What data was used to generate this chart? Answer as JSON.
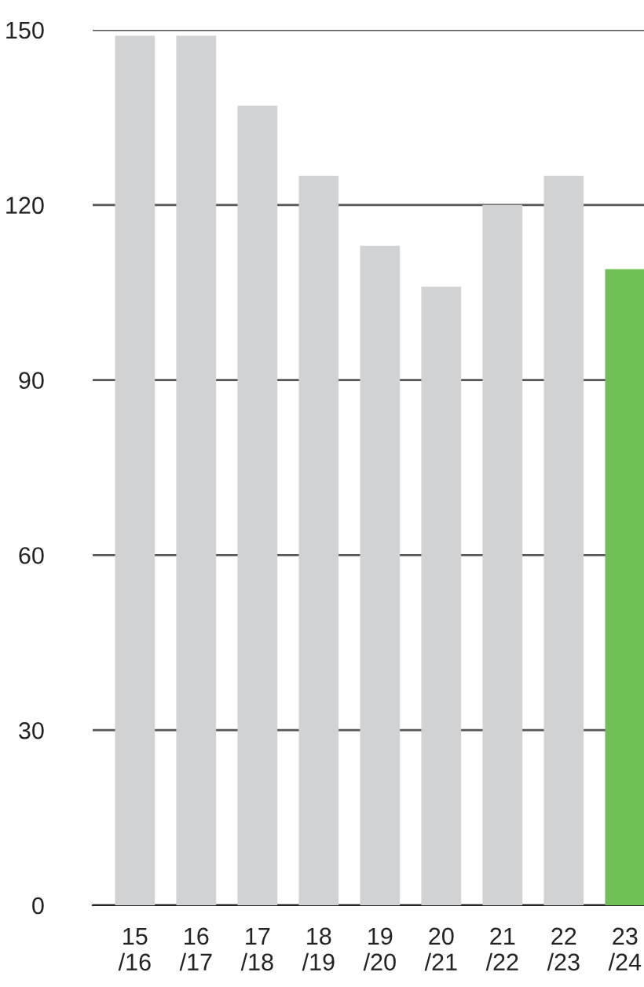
{
  "chart_data": {
    "type": "bar",
    "categories": [
      "15\n/16",
      "16\n/17",
      "17\n/18",
      "18\n/19",
      "19\n/20",
      "20\n/21",
      "21\n/22",
      "22\n/23",
      "23\n/24"
    ],
    "values": [
      149,
      149,
      137,
      125,
      113,
      106,
      120,
      125,
      109
    ],
    "colors": [
      "#d1d2d4",
      "#d1d2d4",
      "#d1d2d4",
      "#d1d2d4",
      "#d1d2d4",
      "#d1d2d4",
      "#d1d2d4",
      "#d1d2d4",
      "#70bf54"
    ],
    "ylim": [
      0,
      150
    ],
    "yticks": [
      0,
      30,
      60,
      90,
      120,
      150
    ],
    "grid": "y"
  }
}
